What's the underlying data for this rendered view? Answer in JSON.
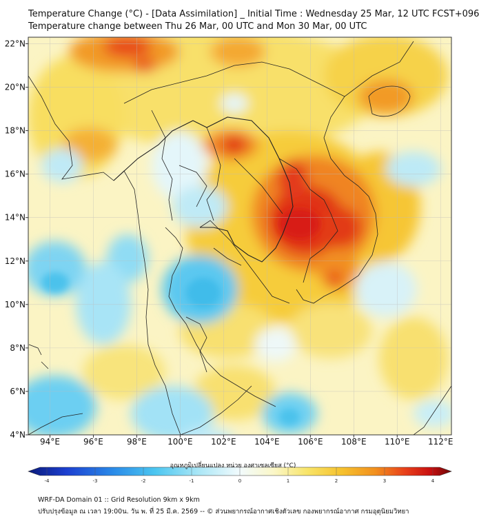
{
  "title": {
    "line1": "Temperature Change (°C) - [Data Assimilation] _ Initial Time : Wednesday 25 Mar, 12 UTC FCST+096",
    "line2": "Temperature change between Thu 26 Mar, 00 UTC and Mon 30 Mar, 00 UTC"
  },
  "map": {
    "lon_range": [
      93,
      112.5
    ],
    "lat_range": [
      4,
      22.3
    ],
    "lon_ticks": [
      "94°E",
      "96°E",
      "98°E",
      "100°E",
      "102°E",
      "104°E",
      "106°E",
      "108°E",
      "110°E",
      "112°E"
    ],
    "lat_ticks": [
      "22°N",
      "20°N",
      "18°N",
      "16°N",
      "14°N",
      "12°N",
      "10°N",
      "8°N",
      "6°N",
      "4°N"
    ],
    "grid": true
  },
  "colorbar": {
    "label": "อุณหภูมิเปลี่ยนแปลง หน่วย องศาเซลเซียส (°C)",
    "min": -4,
    "max": 4,
    "tick_labels": [
      "-4",
      "-3",
      "-2",
      "-1",
      "0",
      "1",
      "2",
      "3",
      "4"
    ],
    "colors": [
      "#0a1a7a",
      "#1c3fd0",
      "#2a8ae8",
      "#4cc6f0",
      "#a8e6f6",
      "#f2fbfd",
      "#fbf7c8",
      "#f8e468",
      "#f6c22e",
      "#f2901e",
      "#e8401a",
      "#c81010",
      "#6e0606"
    ]
  },
  "footer": {
    "line1": "WRF-DA Domain 01 :: Grid Resolution 9km x 9km",
    "line2": "ปรับปรุงข้อมูล ณ เวลา 19:00น. วัน พ. ที่ 25 มี.ค. 2569 -- © ส่วนพยากรณ์อากาศเชิงตัวเลข กองพยากรณ์อากาศ กรมอุตุนิยมวิทยา"
  }
}
